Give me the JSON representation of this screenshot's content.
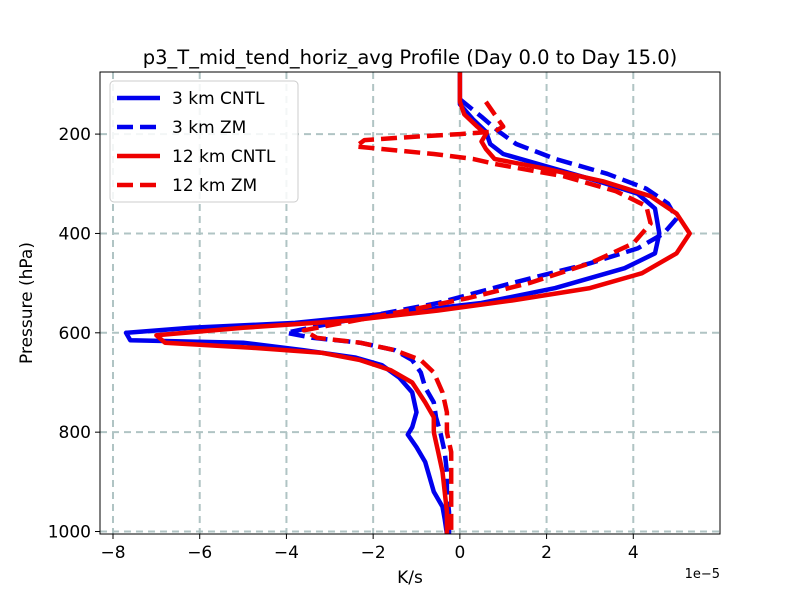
{
  "chart_data": {
    "type": "line",
    "title": "p3_T_mid_tend_horiz_avg Profile (Day 0.0 to Day 15.0)",
    "xlabel": "K/s",
    "ylabel": "Pressure (hPa)",
    "x_scale_label": "1e−5",
    "xlim": [
      -8.3,
      6.0
    ],
    "ylim": [
      1005,
      75
    ],
    "y_inverted": true,
    "x_ticks": [
      -8,
      -6,
      -4,
      -2,
      0,
      2,
      4
    ],
    "x_tick_labels": [
      "−8",
      "−6",
      "−4",
      "−2",
      "0",
      "2",
      "4"
    ],
    "y_ticks": [
      200,
      400,
      600,
      800,
      1000
    ],
    "y_tick_labels": [
      "200",
      "400",
      "600",
      "800",
      "1000"
    ],
    "grid": true,
    "legend_position": "top-left",
    "series": [
      {
        "name": "3 km CNTL",
        "color": "#0000ee",
        "style": "solid",
        "points": [
          [
            0.0,
            75
          ],
          [
            0.0,
            140
          ],
          [
            0.3,
            170
          ],
          [
            0.6,
            195
          ],
          [
            0.7,
            220
          ],
          [
            1.0,
            240
          ],
          [
            2.0,
            265
          ],
          [
            3.2,
            295
          ],
          [
            4.1,
            320
          ],
          [
            4.5,
            350
          ],
          [
            4.6,
            400
          ],
          [
            4.5,
            440
          ],
          [
            3.8,
            470
          ],
          [
            2.2,
            510
          ],
          [
            0.5,
            540
          ],
          [
            -1.5,
            560
          ],
          [
            -3.8,
            580
          ],
          [
            -6.2,
            590
          ],
          [
            -7.7,
            600
          ],
          [
            -7.6,
            615
          ],
          [
            -5.0,
            620
          ],
          [
            -3.6,
            635
          ],
          [
            -2.4,
            650
          ],
          [
            -1.8,
            665
          ],
          [
            -1.4,
            690
          ],
          [
            -1.1,
            720
          ],
          [
            -1.0,
            760
          ],
          [
            -1.1,
            790
          ],
          [
            -1.2,
            805
          ],
          [
            -1.0,
            830
          ],
          [
            -0.8,
            860
          ],
          [
            -0.7,
            890
          ],
          [
            -0.6,
            920
          ],
          [
            -0.4,
            950
          ],
          [
            -0.35,
            975
          ],
          [
            -0.3,
            1005
          ]
        ]
      },
      {
        "name": "3 km ZM",
        "color": "#0000ee",
        "style": "dashed",
        "points": [
          [
            0.0,
            130
          ],
          [
            0.5,
            165
          ],
          [
            0.9,
            195
          ],
          [
            1.3,
            220
          ],
          [
            2.2,
            250
          ],
          [
            3.4,
            280
          ],
          [
            4.3,
            310
          ],
          [
            4.8,
            340
          ],
          [
            5.0,
            370
          ],
          [
            4.7,
            400
          ],
          [
            4.1,
            430
          ],
          [
            3.0,
            460
          ],
          [
            1.2,
            500
          ],
          [
            -0.5,
            540
          ],
          [
            -2.0,
            565
          ],
          [
            -3.2,
            585
          ],
          [
            -4.0,
            600
          ],
          [
            -3.4,
            610
          ],
          [
            -2.3,
            620
          ],
          [
            -1.5,
            635
          ],
          [
            -1.1,
            655
          ],
          [
            -0.9,
            680
          ],
          [
            -0.8,
            710
          ],
          [
            -0.6,
            740
          ],
          [
            -0.55,
            770
          ],
          [
            -0.45,
            800
          ],
          [
            -0.35,
            840
          ],
          [
            -0.3,
            880
          ],
          [
            -0.3,
            920
          ],
          [
            -0.25,
            960
          ],
          [
            -0.25,
            1005
          ]
        ]
      },
      {
        "name": "12 km CNTL",
        "color": "#ee0000",
        "style": "solid",
        "points": [
          [
            0.0,
            75
          ],
          [
            0.0,
            135
          ],
          [
            0.1,
            160
          ],
          [
            0.4,
            185
          ],
          [
            0.6,
            200
          ],
          [
            0.5,
            215
          ],
          [
            0.6,
            230
          ],
          [
            0.8,
            250
          ],
          [
            2.0,
            270
          ],
          [
            3.3,
            295
          ],
          [
            4.4,
            325
          ],
          [
            5.0,
            360
          ],
          [
            5.3,
            400
          ],
          [
            5.0,
            440
          ],
          [
            4.2,
            480
          ],
          [
            3.0,
            510
          ],
          [
            1.2,
            535
          ],
          [
            -0.5,
            555
          ],
          [
            -2.5,
            575
          ],
          [
            -5.0,
            590
          ],
          [
            -7.0,
            605
          ],
          [
            -6.8,
            620
          ],
          [
            -4.8,
            630
          ],
          [
            -3.2,
            640
          ],
          [
            -2.3,
            655
          ],
          [
            -1.6,
            675
          ],
          [
            -1.1,
            700
          ],
          [
            -0.8,
            740
          ],
          [
            -0.6,
            770
          ],
          [
            -0.6,
            800
          ],
          [
            -0.5,
            840
          ],
          [
            -0.4,
            880
          ],
          [
            -0.35,
            920
          ],
          [
            -0.3,
            960
          ],
          [
            -0.3,
            1005
          ]
        ]
      },
      {
        "name": "12 km ZM",
        "color": "#ee0000",
        "style": "dashed",
        "points": [
          [
            0.6,
            135
          ],
          [
            0.8,
            160
          ],
          [
            1.0,
            185
          ],
          [
            0.8,
            195
          ],
          [
            0.0,
            200
          ],
          [
            -1.0,
            205
          ],
          [
            -2.2,
            212
          ],
          [
            -2.4,
            225
          ],
          [
            -1.8,
            230
          ],
          [
            -0.6,
            240
          ],
          [
            0.3,
            250
          ],
          [
            0.8,
            260
          ],
          [
            2.4,
            285
          ],
          [
            3.6,
            315
          ],
          [
            4.3,
            345
          ],
          [
            4.4,
            380
          ],
          [
            4.0,
            420
          ],
          [
            3.0,
            460
          ],
          [
            1.6,
            500
          ],
          [
            0.2,
            530
          ],
          [
            -1.2,
            555
          ],
          [
            -2.4,
            575
          ],
          [
            -3.6,
            595
          ],
          [
            -3.3,
            610
          ],
          [
            -2.3,
            620
          ],
          [
            -1.5,
            635
          ],
          [
            -0.9,
            655
          ],
          [
            -0.6,
            680
          ],
          [
            -0.4,
            720
          ],
          [
            -0.3,
            760
          ],
          [
            -0.3,
            800
          ],
          [
            -0.2,
            840
          ],
          [
            -0.2,
            880
          ],
          [
            -0.2,
            920
          ],
          [
            -0.2,
            960
          ],
          [
            -0.2,
            1005
          ]
        ]
      }
    ]
  }
}
